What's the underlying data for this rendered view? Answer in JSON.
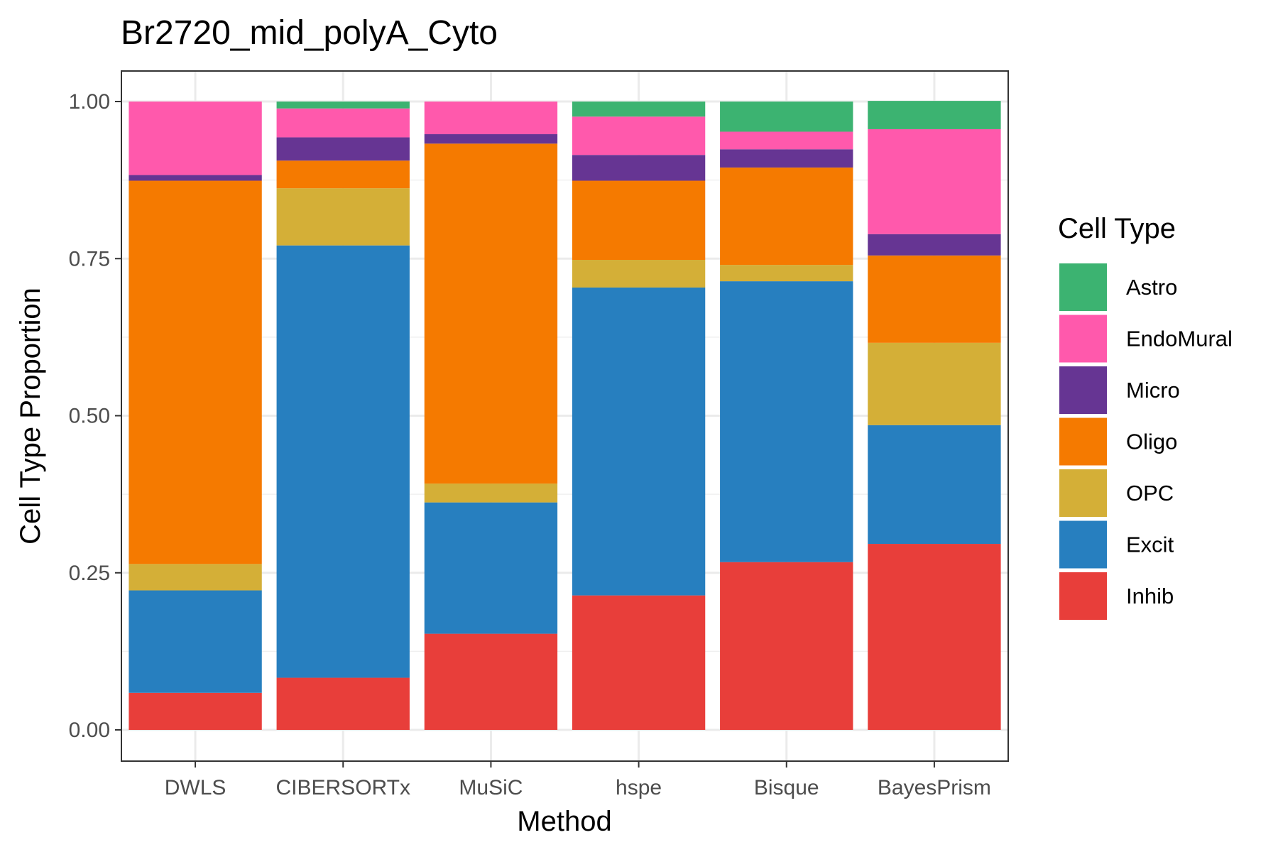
{
  "chart_data": {
    "type": "bar",
    "stacked": true,
    "title": "Br2720_mid_polyA_Cyto",
    "xlabel": "Method",
    "ylabel": "Cell Type Proportion",
    "categories": [
      "DWLS",
      "CIBERSORTx",
      "MuSiC",
      "hspe",
      "Bisque",
      "BayesPrism"
    ],
    "ylim": [
      -0.05,
      1.05
    ],
    "yticks": [
      "0.00",
      "0.25",
      "0.50",
      "0.75",
      "1.00"
    ],
    "ytick_values": [
      0,
      0.25,
      0.5,
      0.75,
      1.0
    ],
    "grid": true,
    "legend": {
      "title": "Cell Type",
      "position": "right"
    },
    "stack_order_bottom_to_top": [
      "Inhib",
      "Excit",
      "OPC",
      "Oligo",
      "Micro",
      "EndoMural",
      "Astro"
    ],
    "series": [
      {
        "name": "Astro",
        "color": "#3CB371",
        "values": [
          0.0,
          0.011,
          0.0,
          0.024,
          0.048,
          0.045
        ]
      },
      {
        "name": "EndoMural",
        "color": "#FF59AC",
        "values": [
          0.117,
          0.046,
          0.052,
          0.061,
          0.028,
          0.167
        ]
      },
      {
        "name": "Micro",
        "color": "#663593",
        "values": [
          0.009,
          0.037,
          0.015,
          0.041,
          0.029,
          0.034
        ]
      },
      {
        "name": "Oligo",
        "color": "#F57A00",
        "values": [
          0.61,
          0.044,
          0.541,
          0.126,
          0.155,
          0.139
        ]
      },
      {
        "name": "OPC",
        "color": "#D4AF37",
        "values": [
          0.042,
          0.091,
          0.03,
          0.044,
          0.026,
          0.131
        ]
      },
      {
        "name": "Excit",
        "color": "#277FBF",
        "values": [
          0.163,
          0.688,
          0.209,
          0.49,
          0.447,
          0.189
        ]
      },
      {
        "name": "Inhib",
        "color": "#E83E3A",
        "values": [
          0.059,
          0.083,
          0.153,
          0.214,
          0.267,
          0.296
        ]
      }
    ]
  }
}
